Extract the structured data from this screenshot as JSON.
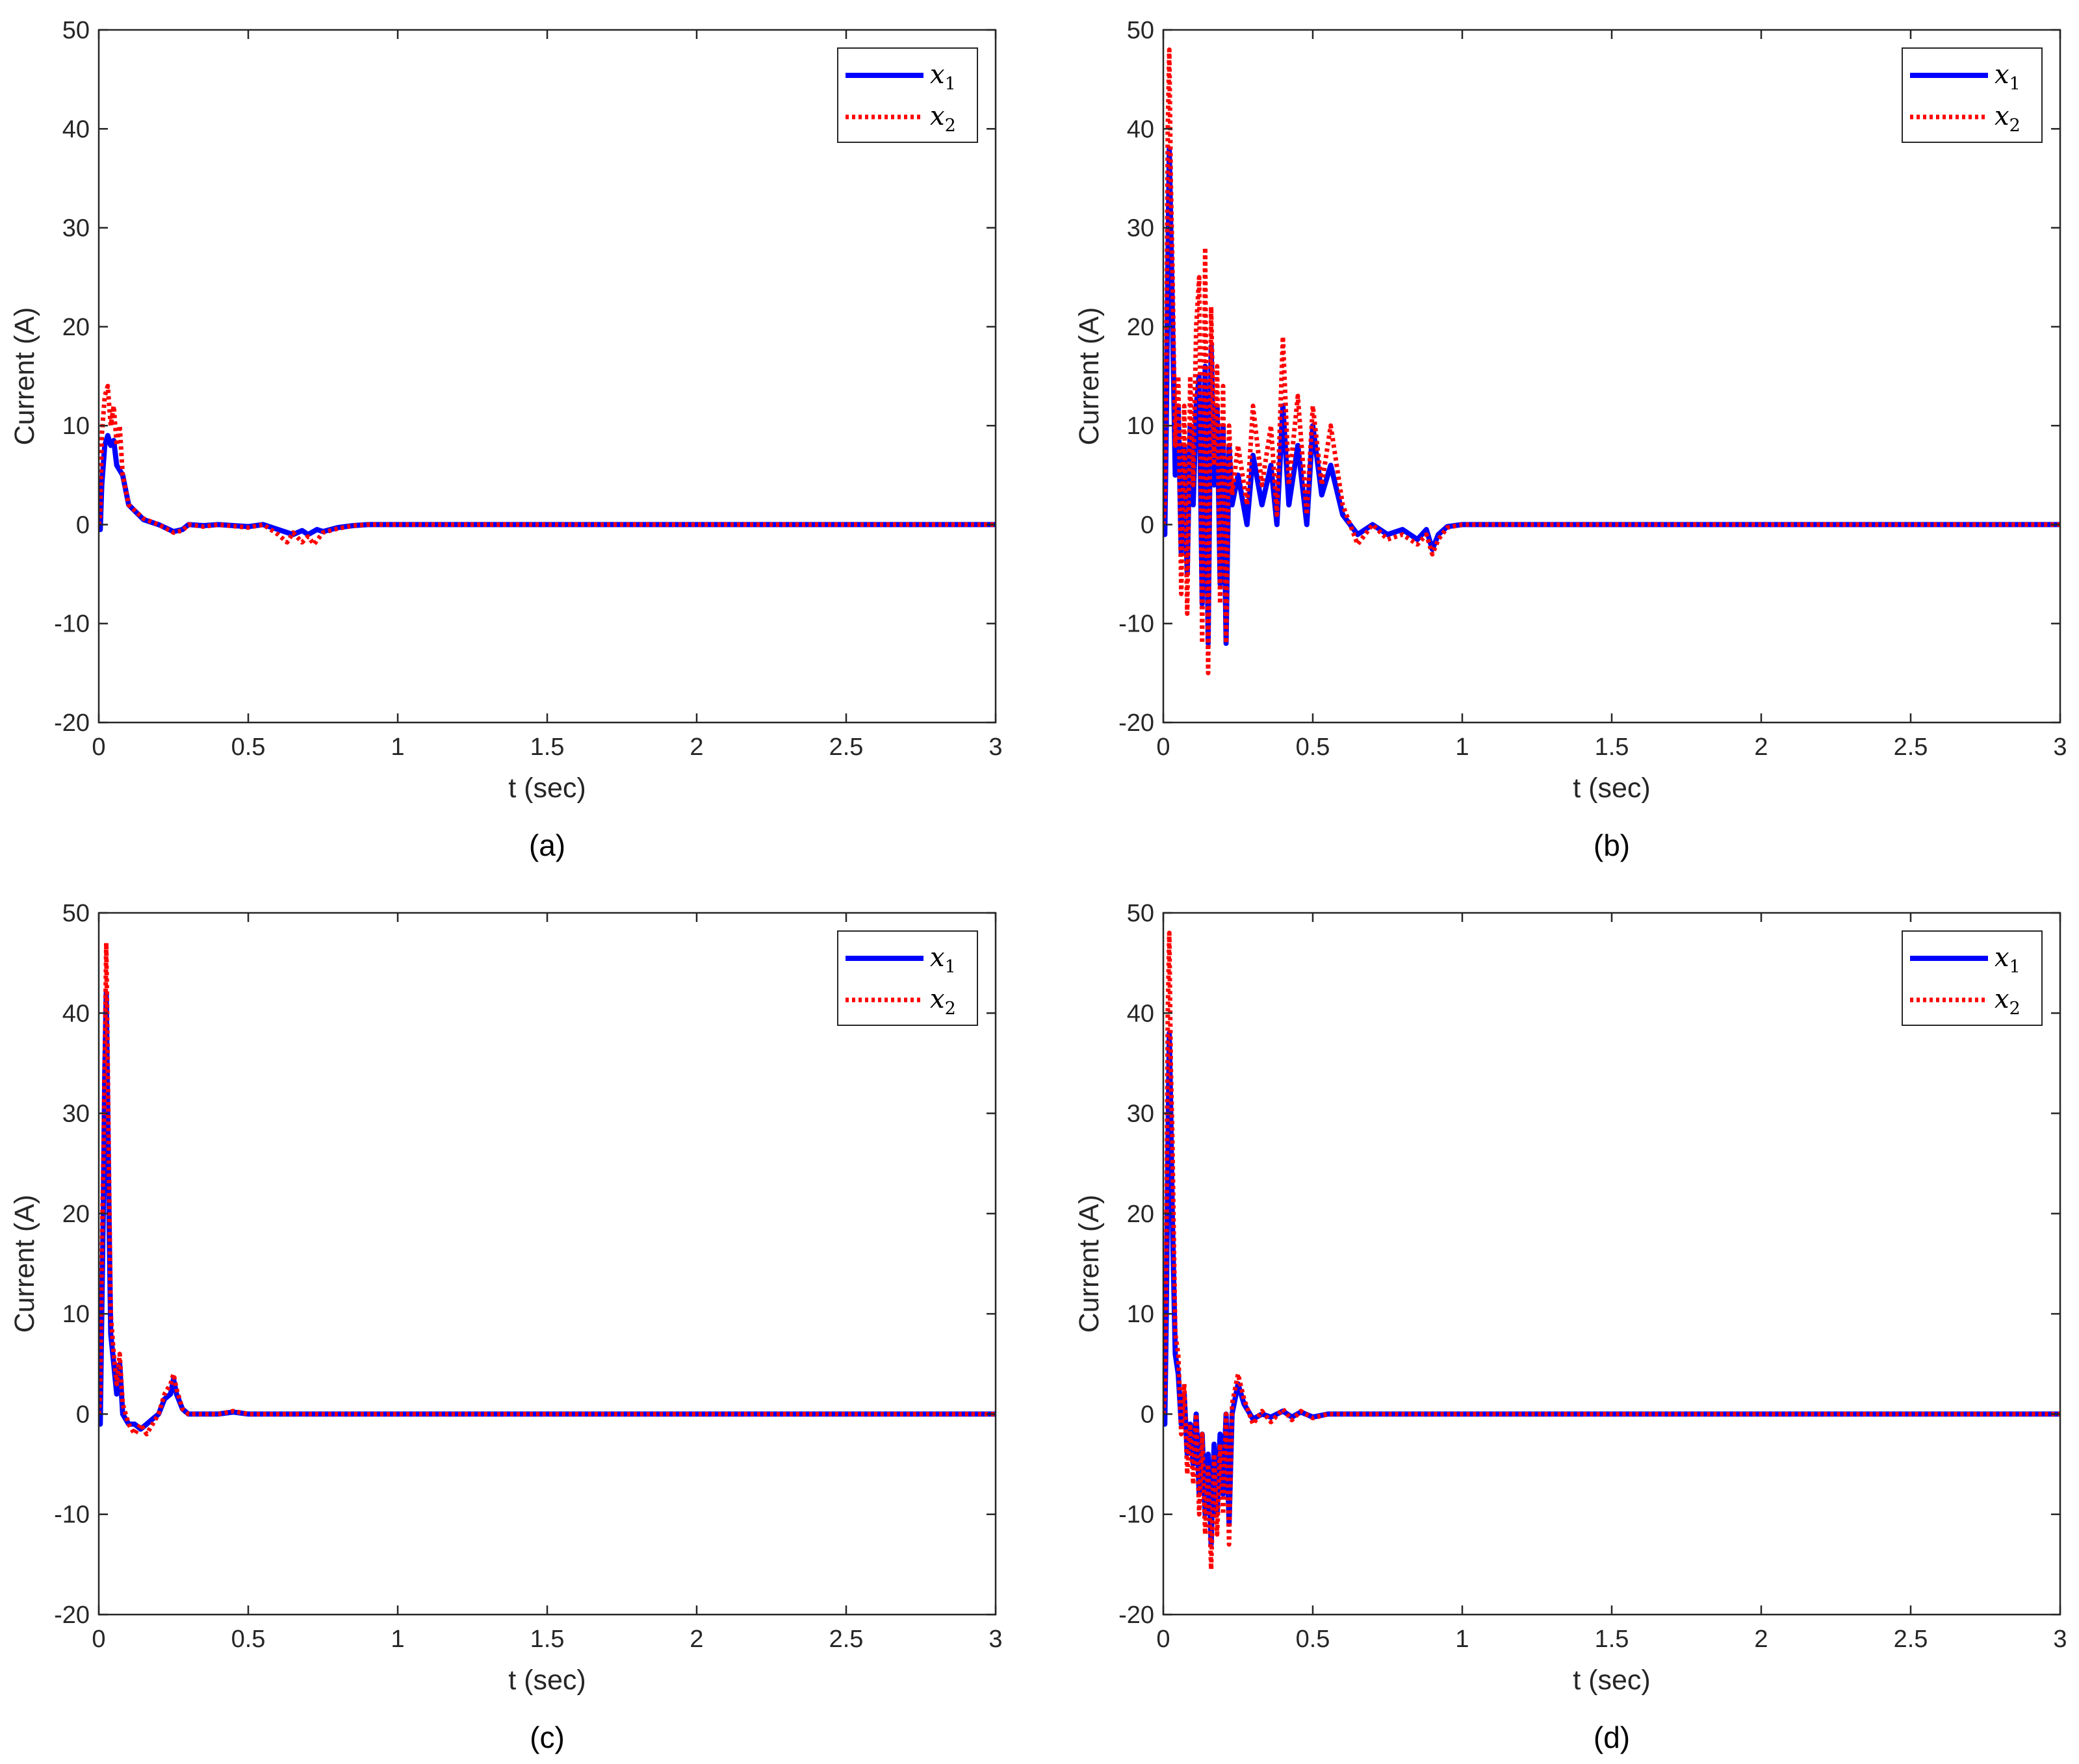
{
  "chart_data": [
    {
      "type": "line",
      "panel_label": "(a)",
      "xlabel": "t (sec)",
      "ylabel": "Current (A)",
      "xlim": [
        0,
        3
      ],
      "ylim": [
        -20,
        50
      ],
      "xticks": [
        "0",
        "0.5",
        "1",
        "1.5",
        "2",
        "2.5",
        "3"
      ],
      "yticks": [
        "-20",
        "-10",
        "0",
        "10",
        "20",
        "30",
        "40",
        "50"
      ],
      "grid": false,
      "legend_position": "top-right",
      "series": [
        {
          "name": "x1",
          "legend_main": "x",
          "legend_sub": "1",
          "color": "#0000ff",
          "style": "solid",
          "x": [
            0,
            0.005,
            0.01,
            0.02,
            0.03,
            0.04,
            0.05,
            0.06,
            0.08,
            0.1,
            0.15,
            0.2,
            0.25,
            0.28,
            0.3,
            0.35,
            0.4,
            0.5,
            0.55,
            0.6,
            0.65,
            0.68,
            0.7,
            0.73,
            0.75,
            0.8,
            0.85,
            0.9,
            1.0,
            1.5,
            2.0,
            2.5,
            3.0
          ],
          "y": [
            0,
            -0.5,
            4,
            8,
            9,
            8,
            8.5,
            6,
            5,
            2,
            0.5,
            0,
            -0.7,
            -0.5,
            0,
            -0.1,
            0,
            -0.2,
            0,
            -0.5,
            -1,
            -0.6,
            -1,
            -0.5,
            -0.7,
            -0.3,
            -0.1,
            0,
            0,
            0,
            0,
            0,
            0
          ]
        },
        {
          "name": "x2",
          "legend_main": "x",
          "legend_sub": "2",
          "color": "#ff0000",
          "style": "dotted",
          "x": [
            0,
            0.005,
            0.01,
            0.02,
            0.03,
            0.035,
            0.04,
            0.05,
            0.06,
            0.07,
            0.08,
            0.1,
            0.15,
            0.2,
            0.25,
            0.28,
            0.3,
            0.35,
            0.4,
            0.5,
            0.55,
            0.6,
            0.63,
            0.65,
            0.68,
            0.7,
            0.72,
            0.75,
            0.8,
            0.85,
            0.9,
            1.0,
            1.5,
            2.0,
            2.5,
            3.0
          ],
          "y": [
            0,
            1,
            9,
            13,
            14,
            12,
            10,
            12,
            8,
            10,
            5,
            2,
            0.6,
            0,
            -0.8,
            -0.6,
            0,
            -0.2,
            0,
            -0.3,
            0,
            -1,
            -1.8,
            -0.8,
            -1.8,
            -1.2,
            -2,
            -0.8,
            -0.4,
            -0.1,
            0,
            0,
            0,
            0,
            0,
            0
          ]
        }
      ]
    },
    {
      "type": "line",
      "panel_label": "(b)",
      "xlabel": "t (sec)",
      "ylabel": "Current (A)",
      "xlim": [
        0,
        3
      ],
      "ylim": [
        -20,
        50
      ],
      "xticks": [
        "0",
        "0.5",
        "1",
        "1.5",
        "2",
        "2.5",
        "3"
      ],
      "yticks": [
        "-20",
        "-10",
        "0",
        "10",
        "20",
        "30",
        "40",
        "50"
      ],
      "grid": false,
      "legend_position": "top-right",
      "series": [
        {
          "name": "x1",
          "legend_main": "x",
          "legend_sub": "1",
          "color": "#0000ff",
          "style": "solid",
          "x": [
            0,
            0.005,
            0.01,
            0.015,
            0.02,
            0.025,
            0.03,
            0.04,
            0.05,
            0.06,
            0.07,
            0.08,
            0.09,
            0.1,
            0.11,
            0.12,
            0.13,
            0.14,
            0.15,
            0.16,
            0.17,
            0.18,
            0.19,
            0.2,
            0.21,
            0.22,
            0.23,
            0.25,
            0.28,
            0.3,
            0.33,
            0.36,
            0.38,
            0.4,
            0.42,
            0.45,
            0.48,
            0.5,
            0.53,
            0.56,
            0.6,
            0.65,
            0.7,
            0.75,
            0.8,
            0.85,
            0.88,
            0.9,
            0.92,
            0.95,
            1.0,
            1.5,
            2.0,
            2.5,
            3.0
          ],
          "y": [
            0,
            -1,
            10,
            25,
            38,
            30,
            22,
            5,
            12,
            -3,
            8,
            -5,
            10,
            2,
            12,
            15,
            -8,
            16,
            -12,
            18,
            4,
            12,
            -6,
            10,
            -12,
            8,
            2,
            5,
            0,
            7,
            2,
            6,
            0,
            12,
            2,
            8,
            0,
            10,
            3,
            6,
            1,
            -1,
            0,
            -1,
            -0.5,
            -1.5,
            -0.5,
            -2.5,
            -1,
            -0.2,
            0,
            0,
            0,
            0,
            0
          ]
        },
        {
          "name": "x2",
          "legend_main": "x",
          "legend_sub": "2",
          "color": "#ff0000",
          "style": "dotted",
          "x": [
            0,
            0.005,
            0.01,
            0.015,
            0.02,
            0.025,
            0.03,
            0.04,
            0.05,
            0.06,
            0.07,
            0.08,
            0.09,
            0.1,
            0.11,
            0.12,
            0.13,
            0.14,
            0.15,
            0.16,
            0.17,
            0.18,
            0.19,
            0.2,
            0.21,
            0.22,
            0.23,
            0.25,
            0.28,
            0.3,
            0.33,
            0.36,
            0.38,
            0.4,
            0.42,
            0.45,
            0.48,
            0.5,
            0.53,
            0.56,
            0.6,
            0.65,
            0.7,
            0.75,
            0.8,
            0.85,
            0.88,
            0.9,
            0.92,
            0.95,
            1.0,
            1.5,
            2.0,
            2.5,
            3.0
          ],
          "y": [
            0,
            2,
            15,
            40,
            48,
            35,
            27,
            8,
            15,
            -7,
            12,
            -9,
            15,
            4,
            20,
            25,
            -12,
            28,
            -15,
            22,
            6,
            16,
            -8,
            14,
            -12,
            10,
            3,
            8,
            2,
            12,
            4,
            10,
            1,
            19,
            4,
            13,
            1,
            12,
            4,
            10,
            2,
            -2,
            0,
            -1.5,
            -1,
            -2,
            -1,
            -3,
            -1.5,
            -0.3,
            0,
            0,
            0,
            0,
            0
          ]
        }
      ]
    },
    {
      "type": "line",
      "panel_label": "(c)",
      "xlabel": "t (sec)",
      "ylabel": "Current (A)",
      "xlim": [
        0,
        3
      ],
      "ylim": [
        -20,
        50
      ],
      "xticks": [
        "0",
        "0.5",
        "1",
        "1.5",
        "2",
        "2.5",
        "3"
      ],
      "yticks": [
        "-20",
        "-10",
        "0",
        "10",
        "20",
        "30",
        "40",
        "50"
      ],
      "grid": false,
      "legend_position": "top-right",
      "series": [
        {
          "name": "x1",
          "legend_main": "x",
          "legend_sub": "1",
          "color": "#0000ff",
          "style": "solid",
          "x": [
            0,
            0.005,
            0.01,
            0.015,
            0.02,
            0.025,
            0.03,
            0.035,
            0.04,
            0.05,
            0.06,
            0.07,
            0.08,
            0.1,
            0.12,
            0.14,
            0.16,
            0.18,
            0.2,
            0.22,
            0.24,
            0.25,
            0.26,
            0.28,
            0.3,
            0.35,
            0.4,
            0.45,
            0.5,
            1.0,
            1.5,
            2.0,
            2.5,
            3.0
          ],
          "y": [
            0,
            -1,
            10,
            20,
            34,
            42,
            30,
            18,
            8,
            5,
            2,
            5,
            0,
            -1,
            -1,
            -1.5,
            -1,
            -0.5,
            0,
            1.5,
            2,
            3.5,
            2,
            0.5,
            0,
            0,
            0,
            0.2,
            0,
            0,
            0,
            0,
            0,
            0
          ]
        },
        {
          "name": "x2",
          "legend_main": "x",
          "legend_sub": "2",
          "color": "#ff0000",
          "style": "dotted",
          "x": [
            0,
            0.005,
            0.01,
            0.015,
            0.02,
            0.025,
            0.03,
            0.035,
            0.04,
            0.05,
            0.06,
            0.07,
            0.08,
            0.1,
            0.12,
            0.14,
            0.16,
            0.18,
            0.2,
            0.22,
            0.24,
            0.25,
            0.26,
            0.28,
            0.3,
            0.35,
            0.4,
            0.45,
            0.5,
            1.0,
            1.5,
            2.0,
            2.5,
            3.0
          ],
          "y": [
            0,
            2,
            15,
            25,
            35,
            47,
            35,
            22,
            10,
            6,
            3,
            6,
            1,
            -1,
            -2,
            -1,
            -2,
            -1,
            0,
            2,
            3,
            4,
            2.5,
            0.5,
            0,
            0,
            0,
            0.3,
            0,
            0,
            0,
            0,
            0,
            0
          ]
        }
      ]
    },
    {
      "type": "line",
      "panel_label": "(d)",
      "xlabel": "t (sec)",
      "ylabel": "Current (A)",
      "xlim": [
        0,
        3
      ],
      "ylim": [
        -20,
        50
      ],
      "xticks": [
        "0",
        "0.5",
        "1",
        "1.5",
        "2",
        "2.5",
        "3"
      ],
      "yticks": [
        "-20",
        "-10",
        "0",
        "10",
        "20",
        "30",
        "40",
        "50"
      ],
      "grid": false,
      "legend_position": "top-right",
      "series": [
        {
          "name": "x1",
          "legend_main": "x",
          "legend_sub": "1",
          "color": "#0000ff",
          "style": "solid",
          "x": [
            0,
            0.005,
            0.01,
            0.015,
            0.02,
            0.025,
            0.03,
            0.04,
            0.05,
            0.06,
            0.07,
            0.08,
            0.09,
            0.1,
            0.11,
            0.12,
            0.13,
            0.14,
            0.15,
            0.16,
            0.17,
            0.18,
            0.19,
            0.2,
            0.21,
            0.22,
            0.23,
            0.25,
            0.27,
            0.3,
            0.33,
            0.36,
            0.4,
            0.43,
            0.46,
            0.5,
            0.55,
            1.0,
            1.5,
            2.0,
            2.5,
            3.0
          ],
          "y": [
            0,
            -1,
            10,
            25,
            38,
            30,
            20,
            6,
            4,
            -1,
            2,
            -4,
            -1,
            -5,
            0,
            -8,
            -2,
            -10,
            -4,
            -13,
            -3,
            -10,
            -2,
            -8,
            0,
            -11,
            0,
            3,
            1,
            -0.5,
            0,
            -0.3,
            0.3,
            -0.3,
            0.2,
            -0.3,
            0,
            0,
            0,
            0,
            0,
            0
          ]
        },
        {
          "name": "x2",
          "legend_main": "x",
          "legend_sub": "2",
          "color": "#ff0000",
          "style": "dotted",
          "x": [
            0,
            0.005,
            0.01,
            0.015,
            0.02,
            0.025,
            0.03,
            0.04,
            0.05,
            0.06,
            0.07,
            0.08,
            0.09,
            0.1,
            0.11,
            0.12,
            0.13,
            0.14,
            0.15,
            0.16,
            0.17,
            0.18,
            0.19,
            0.2,
            0.21,
            0.22,
            0.23,
            0.25,
            0.27,
            0.3,
            0.33,
            0.36,
            0.4,
            0.43,
            0.46,
            0.5,
            0.55,
            1.0,
            1.5,
            2.0,
            2.5,
            3.0
          ],
          "y": [
            0,
            2,
            15,
            40,
            48,
            35,
            28,
            8,
            6,
            -2,
            3,
            -6,
            -1,
            -7,
            0,
            -10,
            -2,
            -12,
            -5,
            -15.5,
            -4,
            -12,
            -3,
            -10,
            0,
            -13,
            1,
            4,
            1.5,
            -1,
            0.3,
            -0.8,
            0.5,
            -0.6,
            0.3,
            -0.4,
            0,
            0,
            0,
            0,
            0,
            0
          ]
        }
      ]
    }
  ]
}
